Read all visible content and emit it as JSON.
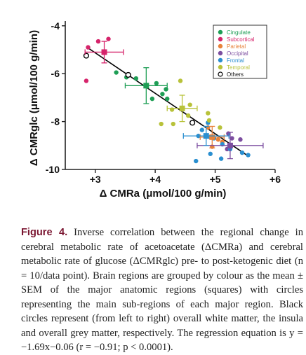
{
  "chart_data": {
    "type": "scatter",
    "xlabel": "Δ CMRa (μmol/100 g/min)",
    "ylabel": "Δ CMRglc (μmol/100 g/min)",
    "xlim": [
      2.5,
      6.0
    ],
    "ylim": [
      -10.0,
      -3.8
    ],
    "xticks": [
      3,
      4,
      5,
      6
    ],
    "xtick_labels": [
      "+3",
      "+4",
      "+5",
      "+6"
    ],
    "yticks": [
      -4,
      -6,
      -8,
      -10
    ],
    "ytick_labels": [
      "-4",
      "-6",
      "-8",
      "-10"
    ],
    "grid": false,
    "legend_position": "top-right",
    "colors": {
      "Cingulate": "#1e9e55",
      "Subcortical": "#d6246b",
      "Parietal": "#e8823a",
      "Occipital": "#7c4ea0",
      "Frontal": "#2a8fd0",
      "Temporal": "#b8c23a",
      "Others": "#111111"
    },
    "series": [
      {
        "name": "Cingulate",
        "points": [
          [
            3.35,
            -5.95
          ],
          [
            3.52,
            -6.15
          ],
          [
            3.68,
            -6.2
          ],
          [
            4.02,
            -6.4
          ],
          [
            4.18,
            -6.65
          ],
          [
            4.12,
            -6.85
          ],
          [
            3.95,
            -7.05
          ],
          [
            4.2,
            -7.05
          ]
        ],
        "mean": {
          "x": 3.85,
          "y": -6.5,
          "xerr": 0.35,
          "yerr": 0.75
        }
      },
      {
        "name": "Subcortical",
        "points": [
          [
            2.88,
            -4.9
          ],
          [
            3.05,
            -4.65
          ],
          [
            3.22,
            -4.55
          ],
          [
            2.85,
            -6.3
          ]
        ],
        "mean": {
          "x": 3.15,
          "y": -5.1,
          "xerr": 0.32,
          "yerr": 0.45
        }
      },
      {
        "name": "Parietal",
        "points": [
          [
            4.88,
            -8.25
          ],
          [
            5.05,
            -8.75
          ],
          [
            5.12,
            -8.85
          ],
          [
            4.95,
            -9.05
          ]
        ],
        "mean": {
          "x": 4.95,
          "y": -8.65,
          "xerr": 0.2,
          "yerr": 0.45
        }
      },
      {
        "name": "Occipital",
        "points": [
          [
            5.22,
            -8.5
          ],
          [
            5.28,
            -8.7
          ],
          [
            5.42,
            -8.75
          ],
          [
            5.2,
            -9.15
          ]
        ],
        "mean": {
          "x": 5.25,
          "y": -9.0,
          "xerr": 0.55,
          "yerr": 0.55
        }
      },
      {
        "name": "Frontal",
        "points": [
          [
            4.88,
            -8.05
          ],
          [
            4.78,
            -8.35
          ],
          [
            4.72,
            -8.6
          ],
          [
            4.92,
            -8.65
          ],
          [
            4.98,
            -8.7
          ],
          [
            5.12,
            -8.95
          ],
          [
            5.25,
            -9.15
          ],
          [
            5.45,
            -9.3
          ],
          [
            5.55,
            -9.4
          ],
          [
            4.92,
            -9.35
          ],
          [
            5.1,
            -9.55
          ],
          [
            4.68,
            -9.65
          ]
        ],
        "mean": {
          "x": 4.85,
          "y": -8.6,
          "xerr": 0.38,
          "yerr": 0.4
        }
      },
      {
        "name": "Temporal",
        "points": [
          [
            4.42,
            -6.3
          ],
          [
            4.58,
            -7.3
          ],
          [
            4.28,
            -7.5
          ],
          [
            4.55,
            -7.75
          ],
          [
            4.88,
            -7.65
          ],
          [
            4.9,
            -7.95
          ],
          [
            4.1,
            -8.1
          ],
          [
            4.3,
            -8.1
          ],
          [
            5.08,
            -8.25
          ]
        ],
        "mean": {
          "x": 4.45,
          "y": -7.45,
          "xerr": 0.25,
          "yerr": 0.55
        }
      },
      {
        "name": "Others",
        "points": [
          [
            2.85,
            -5.25
          ],
          [
            3.55,
            -6.05
          ],
          [
            4.62,
            -8.05
          ]
        ]
      }
    ],
    "regression": {
      "slope": -1.69,
      "intercept": -0.06,
      "x_range": [
        2.9,
        5.55
      ]
    }
  },
  "caption": {
    "label": "Figure 4.",
    "text": " Inverse correlation between the regional change in cerebral metabolic rate of acetoacetate (ΔCMRa) and cerebral metabolic rate of glucose (ΔCMRglc) pre- to post-ketogenic diet (n = 10/data point). Brain regions are grouped by colour as the mean ± SEM of the major anatomic regions (squares) with circles representing the main sub-regions of each major region. Black circles represent (from left to right) overall white matter, the insula and overall grey matter, respectively. The regression equation is y = −1.69x−0.06 (r = −0.91; p < 0.0001)."
  }
}
